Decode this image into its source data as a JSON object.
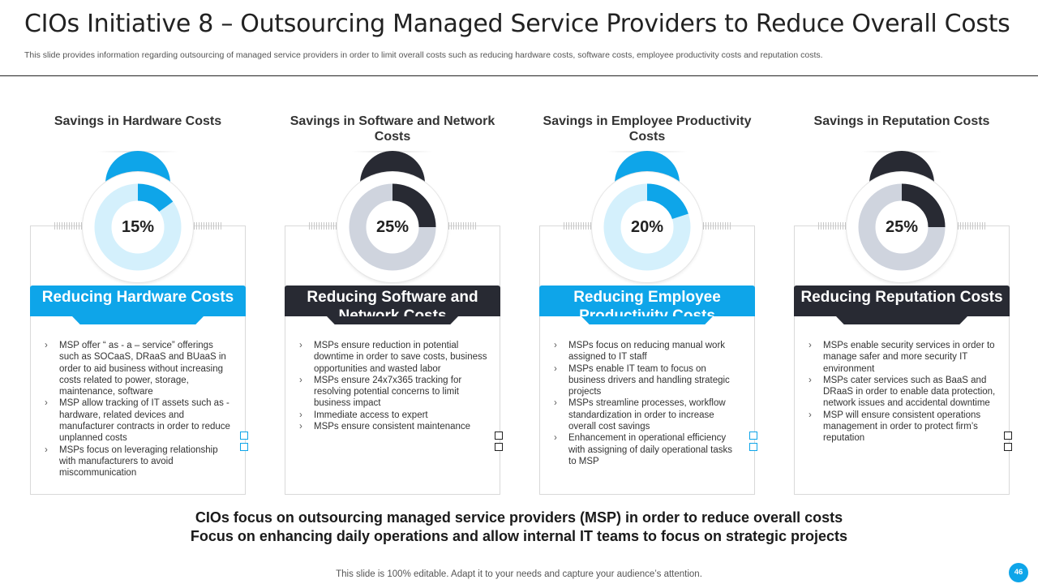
{
  "header": {
    "title": "CIOs Initiative 8 – Outsourcing Managed Service Providers to Reduce Overall Costs",
    "subtitle": "This slide provides information regarding outsourcing of managed service providers in order to limit overall costs such as reducing hardware costs, software costs, employee productivity costs and reputation costs."
  },
  "theme": {
    "accent_blue": "#0ea5e9",
    "dark": "#282a33",
    "ring_light_blue": "#d4f0fc",
    "ring_grey": "#cfd4de"
  },
  "cards": [
    {
      "heading": "Savings in Hardware Costs",
      "percent_label": "15%",
      "percent_value": 15,
      "banner": "Reducing Hardware Costs",
      "bullets": [
        "MSP offer “ as - a – service” offerings such as SOCaaS, DRaaS and BUaaS in order to aid business without increasing costs related to power, storage, maintenance, software",
        "MSP allow tracking of IT assets such as - hardware, related devices and manufacturer contracts in order to reduce unplanned costs",
        "MSPs focus on leveraging relationship with manufacturers to avoid miscommunication"
      ]
    },
    {
      "heading": "Savings in Software and Network Costs",
      "percent_label": "25%",
      "percent_value": 25,
      "banner": "Reducing Software and Network Costs",
      "bullets": [
        "MSPs ensure reduction in potential downtime in order to save costs, business opportunities and wasted labor",
        "MSPs ensure 24x7x365 tracking for resolving potential concerns to limit business impact",
        "Immediate access to expert",
        "MSPs ensure consistent maintenance"
      ]
    },
    {
      "heading": "Savings in Employee Productivity Costs",
      "percent_label": "20%",
      "percent_value": 20,
      "banner": "Reducing Employee Productivity Costs",
      "bullets": [
        "MSPs focus on reducing manual work assigned to IT staff",
        "MSPs enable IT team to focus on business drivers and handling strategic projects",
        "MSPs streamline processes, workflow standardization in order to increase overall cost savings",
        "Enhancement in operational efficiency with assigning of daily operational tasks to MSP"
      ]
    },
    {
      "heading": "Savings in Reputation Costs",
      "percent_label": "25%",
      "percent_value": 25,
      "banner": "Reducing Reputation Costs",
      "bullets": [
        "MSPs enable security services in order to manage safer and more security IT environment",
        "MSPs cater services such as BaaS and DRaaS in order to enable data protection, network issues and accidental downtime",
        "MSP will ensure consistent operations management in order to protect firm’s reputation"
      ]
    }
  ],
  "summary": {
    "line1": "CIOs focus on outsourcing managed service providers (MSP) in order to reduce overall costs",
    "line2": "Focus on enhancing daily operations and allow internal IT teams to focus on strategic projects"
  },
  "footer": {
    "note": "This slide is 100% editable. Adapt it to your needs and capture your audience’s attention.",
    "page_number": "46"
  }
}
